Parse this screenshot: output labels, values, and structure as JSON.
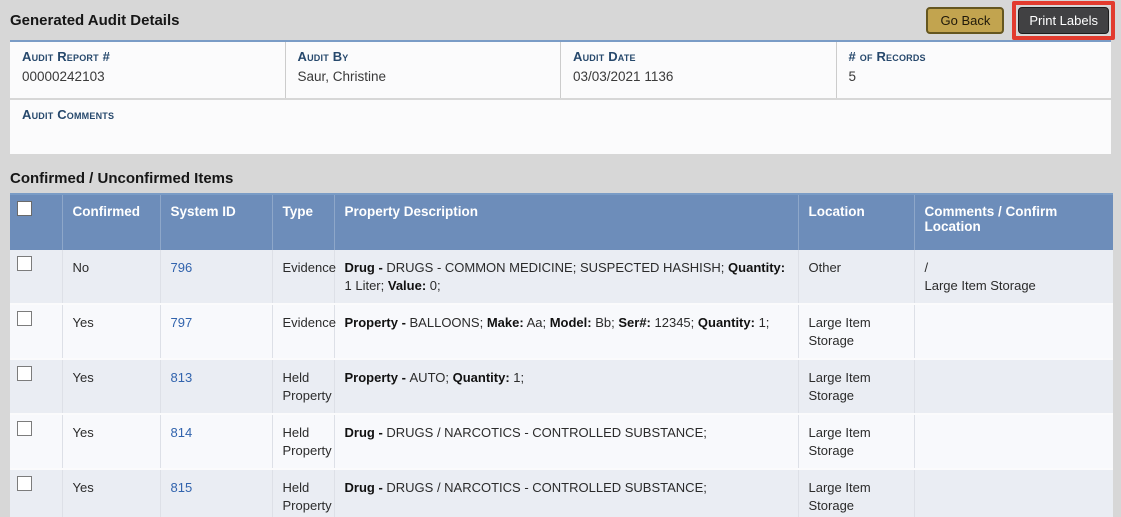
{
  "page": {
    "title": "Generated Audit Details"
  },
  "toolbar": {
    "go_back_label": "Go Back",
    "print_labels_label": "Print Labels"
  },
  "summary": {
    "fields": [
      {
        "label": "Audit Report #",
        "value": "00000242103"
      },
      {
        "label": "Audit By",
        "value": "Saur, Christine"
      },
      {
        "label": "Audit Date",
        "value": "03/03/2021 1136"
      },
      {
        "label": "# of Records",
        "value": "5"
      }
    ],
    "comments_label": "Audit Comments",
    "comments_value": ""
  },
  "items_section": {
    "title": "Confirmed / Unconfirmed Items",
    "columns": [
      "",
      "Confirmed",
      "System ID",
      "Type",
      "Property Description",
      "Location",
      "Comments / Confirm Location"
    ],
    "rows": [
      {
        "checked": false,
        "confirmed": "No",
        "system_id": "796",
        "type": "Evidence",
        "description": [
          {
            "b": "Drug - "
          },
          {
            "t": "DRUGS - COMMON MEDICINE; SUSPECTED HASHISH; "
          },
          {
            "b": "Quantity:"
          },
          {
            "t": " 1 Liter; "
          },
          {
            "b": "Value:"
          },
          {
            "t": " 0;"
          }
        ],
        "location": "Other",
        "comments": "/\nLarge Item Storage"
      },
      {
        "checked": false,
        "confirmed": "Yes",
        "system_id": "797",
        "type": "Evidence",
        "description": [
          {
            "b": "Property - "
          },
          {
            "t": "BALLOONS; "
          },
          {
            "b": "Make:"
          },
          {
            "t": " Aa; "
          },
          {
            "b": "Model:"
          },
          {
            "t": " Bb; "
          },
          {
            "b": "Ser#:"
          },
          {
            "t": " 12345; "
          },
          {
            "b": "Quantity:"
          },
          {
            "t": " 1;"
          }
        ],
        "location": "Large Item Storage",
        "comments": ""
      },
      {
        "checked": false,
        "confirmed": "Yes",
        "system_id": "813",
        "type": "Held Property",
        "description": [
          {
            "b": "Property - "
          },
          {
            "t": "AUTO; "
          },
          {
            "b": "Quantity:"
          },
          {
            "t": " 1;"
          }
        ],
        "location": "Large Item Storage",
        "comments": ""
      },
      {
        "checked": false,
        "confirmed": "Yes",
        "system_id": "814",
        "type": "Held Property",
        "description": [
          {
            "b": "Drug - "
          },
          {
            "t": "DRUGS / NARCOTICS - CONTROLLED SUBSTANCE;"
          }
        ],
        "location": "Large Item Storage",
        "comments": ""
      },
      {
        "checked": false,
        "confirmed": "Yes",
        "system_id": "815",
        "type": "Held Property",
        "description": [
          {
            "b": "Drug - "
          },
          {
            "t": "DRUGS / NARCOTICS - CONTROLLED SUBSTANCE;"
          }
        ],
        "location": "Large Item Storage",
        "comments": ""
      }
    ]
  },
  "accent_colors": {
    "table_header_blue": "#6d8dba",
    "panel_top_border_blue": "#7a9cc6",
    "link_blue": "#3163ad",
    "go_back_gold": "#c2a44f",
    "print_labels_dark": "#414143",
    "highlight_red": "#e23b2e",
    "row_odd": "#eaedf3",
    "row_even": "#f8f9fc"
  }
}
